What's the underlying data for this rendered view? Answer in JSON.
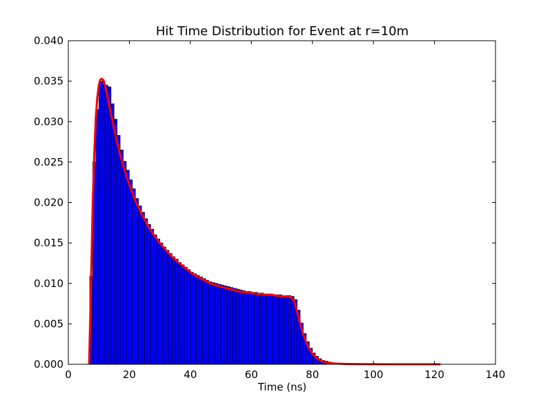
{
  "chart_data": {
    "type": "bar",
    "title": "Hit Time Distribution for Event at r=10m",
    "xlabel": "Time (ns)",
    "ylabel": "",
    "xlim": [
      0,
      140
    ],
    "ylim": [
      0,
      0.04
    ],
    "x_ticks": [
      "0",
      "20",
      "40",
      "60",
      "80",
      "100",
      "120",
      "140"
    ],
    "y_ticks": [
      "0.000",
      "0.005",
      "0.010",
      "0.015",
      "0.020",
      "0.025",
      "0.030",
      "0.035",
      "0.040"
    ],
    "grid": false,
    "legend": "none",
    "bin_width": 1,
    "colors": {
      "bars": "#0000ff",
      "bar_edge": "#000000",
      "fit_line": "#ff0000"
    },
    "histogram": {
      "bin_starts": [
        7,
        8,
        9,
        10,
        11,
        12,
        13,
        14,
        15,
        16,
        17,
        18,
        19,
        20,
        21,
        22,
        23,
        24,
        25,
        26,
        27,
        28,
        29,
        30,
        31,
        32,
        33,
        34,
        35,
        36,
        37,
        38,
        39,
        40,
        41,
        42,
        43,
        44,
        45,
        46,
        47,
        48,
        49,
        50,
        51,
        52,
        53,
        54,
        55,
        56,
        57,
        58,
        59,
        60,
        61,
        62,
        63,
        64,
        65,
        66,
        67,
        68,
        69,
        70,
        71,
        72,
        73,
        74,
        75,
        76,
        77,
        78,
        79,
        80,
        81,
        82,
        83,
        84,
        85,
        86,
        87,
        88,
        89,
        90,
        91,
        92,
        93,
        94,
        95,
        96,
        97,
        98,
        99,
        100
      ],
      "values": [
        0.0109,
        0.025,
        0.0315,
        0.035,
        0.035,
        0.0345,
        0.0343,
        0.0322,
        0.0303,
        0.0283,
        0.0265,
        0.0251,
        0.024,
        0.0228,
        0.0217,
        0.0205,
        0.0196,
        0.0188,
        0.018,
        0.0173,
        0.0167,
        0.016,
        0.0155,
        0.015,
        0.0145,
        0.0141,
        0.0137,
        0.0133,
        0.013,
        0.0126,
        0.0123,
        0.012,
        0.0117,
        0.0114,
        0.0112,
        0.011,
        0.0108,
        0.0106,
        0.0104,
        0.0102,
        0.0101,
        0.01,
        0.0099,
        0.0098,
        0.0097,
        0.0096,
        0.0095,
        0.0094,
        0.0093,
        0.0092,
        0.0091,
        0.009,
        0.009,
        0.0089,
        0.0089,
        0.0088,
        0.0088,
        0.0087,
        0.0087,
        0.0087,
        0.0086,
        0.0086,
        0.0086,
        0.0085,
        0.0085,
        0.0085,
        0.0084,
        0.008,
        0.0067,
        0.0051,
        0.0038,
        0.0028,
        0.002,
        0.0014,
        0.001,
        0.0007,
        0.0005,
        0.0004,
        0.0003,
        0.0002,
        0.00015,
        0.0001,
        8e-05,
        6e-05,
        5e-05,
        4e-05,
        3e-05,
        3e-05,
        2e-05,
        2e-05,
        2e-05,
        1e-05,
        1e-05,
        1e-05
      ]
    },
    "fit_curve": {
      "x": [
        6.8,
        7.2,
        7.6,
        8,
        8.5,
        9,
        9.5,
        10,
        10.5,
        11,
        11.5,
        12,
        13,
        14,
        15,
        16,
        17,
        18,
        19,
        20,
        22,
        24,
        26,
        28,
        30,
        32,
        34,
        36,
        38,
        40,
        42,
        44,
        46,
        48,
        50,
        52,
        54,
        56,
        58,
        60,
        62,
        64,
        66,
        68,
        70,
        72,
        73,
        74,
        75,
        76,
        77,
        78,
        79,
        80,
        81,
        82,
        83,
        84,
        85,
        86,
        88,
        90,
        92,
        95,
        100,
        105,
        110,
        115,
        120,
        122
      ],
      "y": [
        0.0,
        0.006,
        0.013,
        0.02,
        0.026,
        0.0305,
        0.033,
        0.0345,
        0.0352,
        0.0353,
        0.0351,
        0.0345,
        0.0328,
        0.0309,
        0.0291,
        0.0274,
        0.0259,
        0.0246,
        0.0233,
        0.0222,
        0.0202,
        0.0186,
        0.0172,
        0.016,
        0.015,
        0.0141,
        0.0133,
        0.0126,
        0.012,
        0.0114,
        0.0109,
        0.0105,
        0.0101,
        0.0098,
        0.0096,
        0.0094,
        0.0092,
        0.009,
        0.0089,
        0.0088,
        0.0087,
        0.0086,
        0.0086,
        0.0085,
        0.0084,
        0.0084,
        0.0083,
        0.0078,
        0.0065,
        0.005,
        0.0037,
        0.0027,
        0.0019,
        0.0013,
        0.0009,
        0.0006,
        0.0004,
        0.0003,
        0.0002,
        0.00015,
        8e-05,
        5e-05,
        3e-05,
        2e-05,
        1e-05,
        5e-06,
        3e-06,
        2e-06,
        1e-06,
        0.0
      ]
    }
  }
}
